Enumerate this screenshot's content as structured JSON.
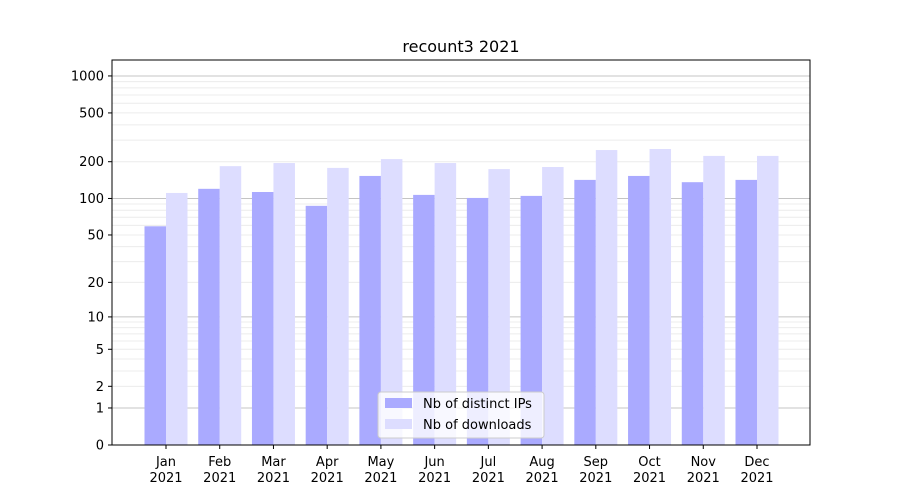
{
  "chart_data": {
    "type": "bar",
    "title": "recount3 2021",
    "xlabel": "",
    "ylabel": "",
    "yscale": "log(1+x)",
    "ylim": [
      0,
      1200
    ],
    "yticks": [
      0,
      1,
      2,
      5,
      10,
      20,
      50,
      100,
      200,
      500,
      1000
    ],
    "categories": [
      "Jan\n2021",
      "Feb\n2021",
      "Mar\n2021",
      "Apr\n2021",
      "May\n2021",
      "Jun\n2021",
      "Jul\n2021",
      "Aug\n2021",
      "Sep\n2021",
      "Oct\n2021",
      "Nov\n2021",
      "Dec\n2021"
    ],
    "series": [
      {
        "name": "Nb of distinct IPs",
        "color": "#aaaaff",
        "values": [
          59,
          120,
          113,
          87,
          153,
          107,
          101,
          105,
          142,
          153,
          136,
          142
        ]
      },
      {
        "name": "Nb of downloads",
        "color": "#ddddff",
        "values": [
          111,
          184,
          195,
          178,
          210,
          195,
          174,
          181,
          249,
          254,
          223,
          223
        ]
      }
    ],
    "grid": true,
    "legend": "lower-center"
  }
}
